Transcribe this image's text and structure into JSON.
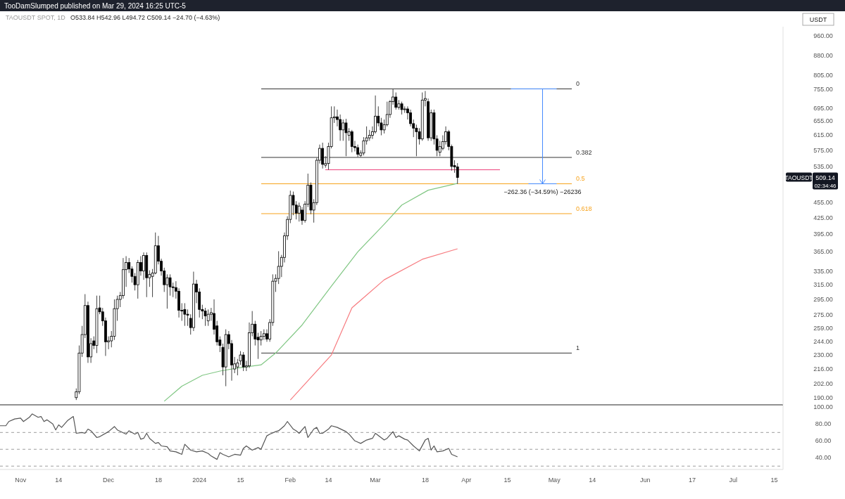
{
  "chart_data": [
    {
      "type": "candlestick",
      "title": "TAOUSDT SPOT, 1D",
      "subtitle": "O533.84 H542.96 L494.72 C509.14 −24.70 (−4.63%)",
      "log": true,
      "grid": false,
      "tick_labels": "y",
      "xlim": [
        "2023-10-25",
        "2024-07-18"
      ],
      "ylim": [
        184,
        1000
      ],
      "yticks": [
        {
          "value": 190,
          "label": "190.00"
        },
        {
          "value": 202,
          "label": "202.00"
        },
        {
          "value": 216,
          "label": "216.00"
        },
        {
          "value": 230,
          "label": "230.00"
        },
        {
          "value": 244,
          "label": "244.00"
        },
        {
          "value": 259,
          "label": "259.00"
        },
        {
          "value": 275,
          "label": "275.00"
        },
        {
          "value": 295,
          "label": "295.00"
        },
        {
          "value": 315,
          "label": "315.00"
        },
        {
          "value": 335,
          "label": "335.00"
        },
        {
          "value": 365,
          "label": "365.00"
        },
        {
          "value": 395,
          "label": "395.00"
        },
        {
          "value": 425,
          "label": "425.00"
        },
        {
          "value": 455,
          "label": "455.00"
        },
        {
          "value": 535,
          "label": "535.00"
        },
        {
          "value": 575,
          "label": "575.00"
        },
        {
          "value": 615,
          "label": "615.00"
        },
        {
          "value": 655,
          "label": "655.00"
        },
        {
          "value": 695,
          "label": "695.00"
        },
        {
          "value": 755,
          "label": "755.00"
        },
        {
          "value": 805,
          "label": "805.00"
        },
        {
          "value": 880,
          "label": "880.00"
        },
        {
          "value": 960,
          "label": "960.00"
        }
      ],
      "x": [
        "2023-11-20",
        "2023-11-21",
        "2023-11-22",
        "2023-11-23",
        "2023-11-24",
        "2023-11-25",
        "2023-11-26",
        "2023-11-27",
        "2023-11-28",
        "2023-11-29",
        "2023-11-30",
        "2023-12-01",
        "2023-12-02",
        "2023-12-03",
        "2023-12-04",
        "2023-12-05",
        "2023-12-06",
        "2023-12-07",
        "2023-12-08",
        "2023-12-09",
        "2023-12-10",
        "2023-12-11",
        "2023-12-12",
        "2023-12-13",
        "2023-12-14",
        "2023-12-15",
        "2023-12-16",
        "2023-12-17",
        "2023-12-18",
        "2023-12-19",
        "2023-12-20",
        "2023-12-21",
        "2023-12-22",
        "2023-12-23",
        "2023-12-24",
        "2023-12-25",
        "2023-12-26",
        "2023-12-27",
        "2023-12-28",
        "2023-12-29",
        "2023-12-30",
        "2023-12-31",
        "2024-01-01",
        "2024-01-02",
        "2024-01-03",
        "2024-01-04",
        "2024-01-05",
        "2024-01-06",
        "2024-01-07",
        "2024-01-08",
        "2024-01-09",
        "2024-01-10",
        "2024-01-11",
        "2024-01-12",
        "2024-01-13",
        "2024-01-14",
        "2024-01-15",
        "2024-01-16",
        "2024-01-17",
        "2024-01-18",
        "2024-01-19",
        "2024-01-20",
        "2024-01-21",
        "2024-01-22",
        "2024-01-23",
        "2024-01-24",
        "2024-01-25",
        "2024-01-26",
        "2024-01-27",
        "2024-01-28",
        "2024-01-29",
        "2024-01-30",
        "2024-01-31",
        "2024-02-01",
        "2024-02-02",
        "2024-02-03",
        "2024-02-04",
        "2024-02-05",
        "2024-02-06",
        "2024-02-07",
        "2024-02-08",
        "2024-02-09",
        "2024-02-10",
        "2024-02-11",
        "2024-02-12",
        "2024-02-13",
        "2024-02-14",
        "2024-02-15",
        "2024-02-16",
        "2024-02-17",
        "2024-02-18",
        "2024-02-19",
        "2024-02-20",
        "2024-02-21",
        "2024-02-22",
        "2024-02-23",
        "2024-02-24",
        "2024-02-25",
        "2024-02-26",
        "2024-02-27",
        "2024-02-28",
        "2024-02-29",
        "2024-03-01",
        "2024-03-02",
        "2024-03-03",
        "2024-03-04",
        "2024-03-05",
        "2024-03-06",
        "2024-03-07",
        "2024-03-08",
        "2024-03-09",
        "2024-03-10",
        "2024-03-11",
        "2024-03-12",
        "2024-03-13",
        "2024-03-14",
        "2024-03-15",
        "2024-03-16",
        "2024-03-17",
        "2024-03-18",
        "2024-03-19",
        "2024-03-20",
        "2024-03-21",
        "2024-03-22",
        "2024-03-23",
        "2024-03-24",
        "2024-03-25",
        "2024-03-26",
        "2024-03-27",
        "2024-03-28",
        "2024-03-29"
      ],
      "ohlc": [
        [
          190,
          198,
          188,
          195
        ],
        [
          195,
          240,
          193,
          232
        ],
        [
          232,
          262,
          228,
          252
        ],
        [
          252,
          302,
          248,
          287
        ],
        [
          287,
          292,
          222,
          228
        ],
        [
          228,
          248,
          222,
          242
        ],
        [
          245,
          250,
          236,
          240
        ],
        [
          240,
          300,
          232,
          283
        ],
        [
          284,
          300,
          276,
          279
        ],
        [
          279,
          284,
          262,
          268
        ],
        [
          268,
          272,
          229,
          244
        ],
        [
          244,
          250,
          236,
          245
        ],
        [
          245,
          256,
          238,
          250
        ],
        [
          250,
          295,
          246,
          283
        ],
        [
          283,
          300,
          268,
          295
        ],
        [
          295,
          305,
          285,
          300
        ],
        [
          300,
          355,
          296,
          337
        ],
        [
          337,
          358,
          312,
          348
        ],
        [
          348,
          355,
          332,
          338
        ],
        [
          338,
          342,
          318,
          327
        ],
        [
          327,
          332,
          307,
          315
        ],
        [
          315,
          352,
          296,
          348
        ],
        [
          348,
          358,
          328,
          335
        ],
        [
          335,
          364,
          322,
          359
        ],
        [
          359,
          364,
          298,
          325
        ],
        [
          325,
          336,
          312,
          330
        ],
        [
          327,
          338,
          298,
          332
        ],
        [
          332,
          398,
          330,
          375
        ],
        [
          375,
          392,
          345,
          350
        ],
        [
          350,
          354,
          328,
          335
        ],
        [
          335,
          340,
          305,
          315
        ],
        [
          315,
          330,
          283,
          325
        ],
        [
          325,
          330,
          300,
          312
        ],
        [
          312,
          318,
          298,
          311
        ],
        [
          311,
          320,
          296,
          306
        ],
        [
          306,
          310,
          272,
          281
        ],
        [
          281,
          290,
          268,
          280
        ],
        [
          282,
          290,
          262,
          276
        ],
        [
          276,
          282,
          262,
          275
        ],
        [
          271,
          276,
          252,
          260
        ],
        [
          260,
          334,
          256,
          316
        ],
        [
          316,
          322,
          290,
          305
        ],
        [
          305,
          310,
          272,
          282
        ],
        [
          282,
          288,
          270,
          280
        ],
        [
          280,
          284,
          262,
          274
        ],
        [
          268,
          282,
          262,
          276
        ],
        [
          276,
          284,
          268,
          278
        ],
        [
          277,
          295,
          252,
          258
        ],
        [
          262,
          268,
          240,
          244
        ],
        [
          246,
          250,
          233,
          240
        ],
        [
          238,
          242,
          210,
          218
        ],
        [
          218,
          258,
          200,
          252
        ],
        [
          252,
          256,
          236,
          242
        ],
        [
          242,
          246,
          205,
          220
        ],
        [
          216,
          228,
          212,
          221
        ],
        [
          218,
          226,
          210,
          222
        ],
        [
          224,
          234,
          220,
          230
        ],
        [
          230,
          233,
          214,
          218
        ],
        [
          218,
          224,
          214,
          219
        ],
        [
          219,
          266,
          217,
          254
        ],
        [
          254,
          280,
          250,
          264
        ],
        [
          264,
          268,
          240,
          247
        ],
        [
          249,
          254,
          226,
          246
        ],
        [
          246,
          256,
          240,
          250
        ],
        [
          250,
          258,
          246,
          253
        ],
        [
          253,
          258,
          244,
          247
        ],
        [
          247,
          270,
          244,
          266
        ],
        [
          266,
          330,
          262,
          320
        ],
        [
          320,
          330,
          305,
          324
        ],
        [
          324,
          366,
          316,
          342
        ],
        [
          342,
          360,
          326,
          356
        ],
        [
          356,
          398,
          348,
          392
        ],
        [
          392,
          428,
          385,
          422
        ],
        [
          422,
          480,
          415,
          470
        ],
        [
          470,
          478,
          430,
          450
        ],
        [
          450,
          458,
          422,
          434
        ],
        [
          434,
          455,
          418,
          448
        ],
        [
          440,
          446,
          412,
          420
        ],
        [
          420,
          458,
          416,
          452
        ],
        [
          452,
          518,
          446,
          492
        ],
        [
          492,
          498,
          432,
          440
        ],
        [
          440,
          462,
          416,
          455
        ],
        [
          455,
          556,
          450,
          550
        ],
        [
          550,
          590,
          542,
          580
        ],
        [
          580,
          595,
          530,
          540
        ],
        [
          538,
          560,
          532,
          542
        ],
        [
          542,
          595,
          527,
          585
        ],
        [
          585,
          700,
          580,
          665
        ],
        [
          665,
          700,
          650,
          668
        ],
        [
          668,
          690,
          640,
          660
        ],
        [
          660,
          675,
          600,
          630
        ],
        [
          630,
          660,
          600,
          650
        ],
        [
          650,
          662,
          560,
          622
        ],
        [
          615,
          635,
          600,
          625
        ],
        [
          625,
          630,
          570,
          585
        ],
        [
          585,
          600,
          572,
          582
        ],
        [
          582,
          590,
          558,
          565
        ],
        [
          562,
          575,
          558,
          568
        ],
        [
          568,
          610,
          562,
          600
        ],
        [
          600,
          640,
          590,
          608
        ],
        [
          608,
          630,
          600,
          615
        ],
        [
          615,
          640,
          605,
          625
        ],
        [
          625,
          735,
          620,
          670
        ],
        [
          670,
          700,
          640,
          650
        ],
        [
          650,
          665,
          615,
          630
        ],
        [
          630,
          660,
          620,
          645
        ],
        [
          645,
          715,
          640,
          675
        ],
        [
          675,
          720,
          665,
          715
        ],
        [
          715,
          757,
          705,
          730
        ],
        [
          730,
          745,
          690,
          697
        ],
        [
          697,
          720,
          690,
          708
        ],
        [
          708,
          715,
          675,
          690
        ],
        [
          690,
          700,
          680,
          692
        ],
        [
          692,
          700,
          660,
          680
        ],
        [
          680,
          690,
          640,
          648
        ],
        [
          648,
          660,
          610,
          635
        ],
        [
          635,
          645,
          560,
          625
        ],
        [
          625,
          635,
          590,
          605
        ],
        [
          605,
          745,
          600,
          720
        ],
        [
          720,
          750,
          700,
          725
        ],
        [
          715,
          725,
          600,
          608
        ],
        [
          608,
          690,
          600,
          680
        ],
        [
          680,
          690,
          590,
          605
        ],
        [
          605,
          615,
          560,
          575
        ],
        [
          570,
          600,
          560,
          585
        ],
        [
          580,
          615,
          575,
          598
        ],
        [
          598,
          640,
          590,
          625
        ],
        [
          625,
          630,
          575,
          585
        ],
        [
          585,
          590,
          525,
          535
        ],
        [
          537,
          550,
          520,
          534
        ],
        [
          533.84,
          542.96,
          494.72,
          509.14
        ]
      ],
      "series": [
        {
          "type": "line",
          "color": "#81c784",
          "x": [
            "2023-12-20",
            "2023-12-26",
            "2024-01-02",
            "2024-01-08",
            "2024-01-14",
            "2024-01-22",
            "2024-01-27",
            "2024-02-05",
            "2024-02-15",
            "2024-02-24",
            "2024-03-04",
            "2024-03-10",
            "2024-03-19",
            "2024-03-29"
          ],
          "values": [
            187,
            200,
            210,
            214,
            217,
            220,
            232,
            263,
            313,
            365,
            413,
            450,
            481,
            496
          ]
        },
        {
          "type": "line",
          "color": "#f77c80",
          "x": [
            "2024-02-01",
            "2024-02-15",
            "2024-02-22",
            "2024-03-04",
            "2024-03-17",
            "2024-03-29"
          ],
          "values": [
            188,
            230,
            284,
            322,
            353,
            370
          ]
        }
      ],
      "ref_lines": [
        {
          "axis": "y",
          "value": 757,
          "color": "#333333"
        },
        {
          "axis": "y",
          "value": 557,
          "color": "#333333"
        },
        {
          "axis": "y",
          "value": 495,
          "color": "#f7a21b"
        },
        {
          "axis": "y",
          "value": 433,
          "color": "#f7a21b"
        },
        {
          "axis": "y",
          "value": 232,
          "color": "#333333"
        },
        {
          "axis": "y",
          "value": 527,
          "color": "#ec407a"
        }
      ],
      "annotations": [
        "TooDamSlumped published on Mar 29, 2024 16:25 UTC-5",
        "USDT",
        {
          "text": "−262.36 (−34.59%) −26236",
          "x": "2024-04-27",
          "y": 495
        },
        "TAOUSDT",
        "509.14",
        "02:34:46",
        "0",
        "0.382",
        "0.5",
        "0.618",
        "1"
      ]
    },
    {
      "type": "line",
      "grid": false,
      "xlim": [
        "2023-10-25",
        "2024-07-18"
      ],
      "ylim": [
        26,
        102
      ],
      "xticks": [
        {
          "value": "2023-11-01",
          "label": "Nov"
        },
        {
          "value": "2023-11-14",
          "label": "14"
        },
        {
          "value": "2023-12-01",
          "label": "Dec"
        },
        {
          "value": "2023-12-18",
          "label": "18"
        },
        {
          "value": "2024-01-01",
          "label": "2024"
        },
        {
          "value": "2024-01-15",
          "label": "15"
        },
        {
          "value": "2024-02-01",
          "label": "Feb"
        },
        {
          "value": "2024-02-14",
          "label": "14"
        },
        {
          "value": "2024-03-01",
          "label": "Mar"
        },
        {
          "value": "2024-03-18",
          "label": "18"
        },
        {
          "value": "2024-04-01",
          "label": "Apr"
        },
        {
          "value": "2024-04-15",
          "label": "15"
        },
        {
          "value": "2024-05-01",
          "label": "May"
        },
        {
          "value": "2024-05-14",
          "label": "14"
        },
        {
          "value": "2024-06-01",
          "label": "Jun"
        },
        {
          "value": "2024-06-17",
          "label": "17"
        },
        {
          "value": "2024-07-01",
          "label": "Jul"
        },
        {
          "value": "2024-07-15",
          "label": "15"
        }
      ],
      "yticks": [
        {
          "value": 100,
          "label": "100.00"
        },
        {
          "value": 80,
          "label": "80.00"
        },
        {
          "value": 60,
          "label": "60.00"
        },
        {
          "value": 40,
          "label": "40.00"
        }
      ],
      "series": [
        {
          "color": "#555555",
          "x": [
            "2023-10-25",
            "2023-10-27",
            "2023-10-28",
            "2023-10-30",
            "2023-11-01",
            "2023-11-02",
            "2023-11-04",
            "2023-11-05",
            "2023-11-07",
            "2023-11-08",
            "2023-11-09",
            "2023-11-10",
            "2023-11-12",
            "2023-11-13",
            "2023-11-14",
            "2023-11-15",
            "2023-11-17",
            "2023-11-19",
            "2023-11-20",
            "2023-11-22",
            "2023-11-23",
            "2023-11-24",
            "2023-11-25",
            "2023-11-27",
            "2023-11-28",
            "2023-12-01",
            "2023-12-03",
            "2023-12-04",
            "2023-12-07",
            "2023-12-08",
            "2023-12-10",
            "2023-12-11",
            "2023-12-12",
            "2023-12-13",
            "2023-12-14",
            "2023-12-15",
            "2023-12-17",
            "2023-12-18",
            "2023-12-19",
            "2023-12-21",
            "2023-12-22",
            "2023-12-24",
            "2023-12-26",
            "2023-12-27",
            "2023-12-29",
            "2023-12-31",
            "2024-01-02",
            "2024-01-04",
            "2024-01-05",
            "2024-01-07",
            "2024-01-08",
            "2024-01-09",
            "2024-01-11",
            "2024-01-13",
            "2024-01-15",
            "2024-01-16",
            "2024-01-17",
            "2024-01-19",
            "2024-01-21",
            "2024-01-22",
            "2024-01-24",
            "2024-01-25",
            "2024-01-27",
            "2024-01-28",
            "2024-01-30",
            "2024-01-31",
            "2024-02-02",
            "2024-02-03",
            "2024-02-04",
            "2024-02-06",
            "2024-02-07",
            "2024-02-09",
            "2024-02-10",
            "2024-02-11",
            "2024-02-12",
            "2024-02-14",
            "2024-02-15",
            "2024-02-17",
            "2024-02-20",
            "2024-02-21",
            "2024-02-23",
            "2024-02-25",
            "2024-02-27",
            "2024-02-29",
            "2024-03-01",
            "2024-03-04",
            "2024-03-05",
            "2024-03-07",
            "2024-03-08",
            "2024-03-09",
            "2024-03-11",
            "2024-03-12",
            "2024-03-14",
            "2024-03-16",
            "2024-03-18",
            "2024-03-19",
            "2024-03-20",
            "2024-03-21",
            "2024-03-22",
            "2024-03-24",
            "2024-03-26",
            "2024-03-27",
            "2024-03-29"
          ],
          "values": [
            78,
            78,
            83,
            86,
            87,
            83,
            88,
            92,
            88,
            89,
            83,
            85,
            80,
            73,
            79,
            76,
            84,
            89,
            69,
            70,
            69,
            74,
            72,
            64,
            65,
            71,
            77,
            73,
            68,
            72,
            68,
            70,
            62,
            63,
            69,
            63,
            57,
            58,
            54,
            53,
            48,
            47,
            44,
            56,
            49,
            47,
            48,
            45,
            42,
            38,
            46,
            44,
            41,
            44,
            43,
            51,
            54,
            49,
            52,
            50,
            66,
            68,
            71,
            72,
            78,
            83,
            74,
            72,
            69,
            77,
            64,
            74,
            76,
            69,
            69,
            74,
            78,
            76,
            71,
            68,
            60,
            57,
            61,
            63,
            69,
            61,
            63,
            71,
            64,
            66,
            62,
            61,
            54,
            48,
            61,
            63,
            49,
            54,
            47,
            48,
            51,
            44,
            41
          ]
        }
      ],
      "ref_lines": [
        {
          "axis": "y",
          "value": 70,
          "color": "#9e9e9e",
          "line_style": "dashed"
        },
        {
          "axis": "y",
          "value": 50,
          "color": "#9e9e9e",
          "line_style": "dashed"
        },
        {
          "axis": "y",
          "value": 30,
          "color": "#9e9e9e",
          "line_style": "dashed"
        }
      ]
    }
  ]
}
